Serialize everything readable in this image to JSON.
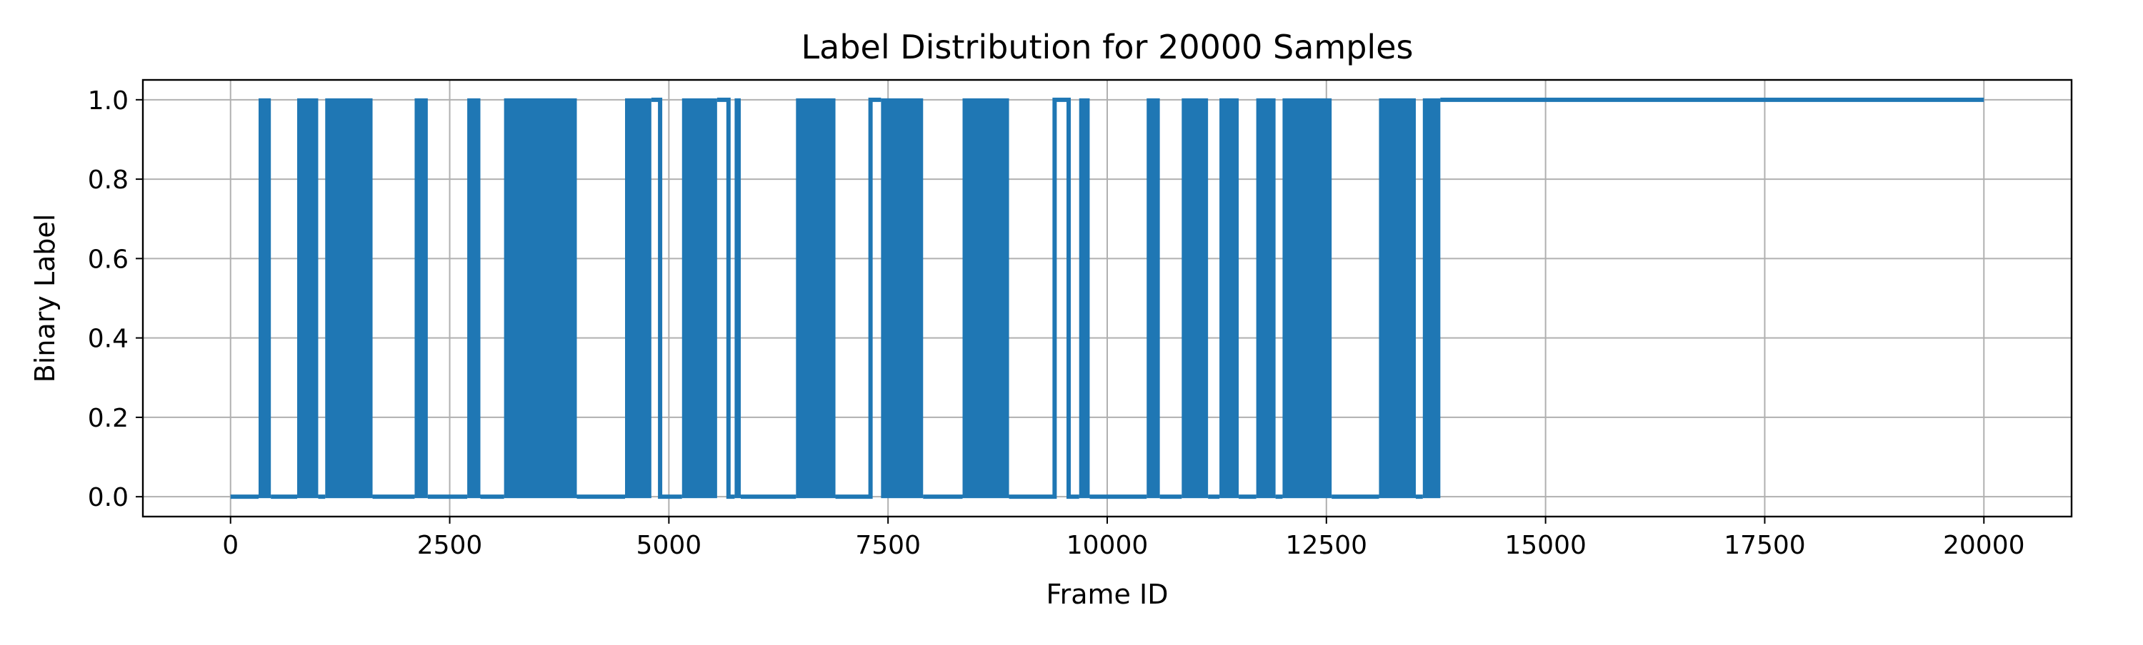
{
  "chart_data": {
    "type": "line",
    "title": "Label Distribution for 20000 Samples",
    "xlabel": "Frame ID",
    "ylabel": "Binary Label",
    "xlim": [
      -1000,
      21000
    ],
    "ylim": [
      -0.05,
      1.05
    ],
    "x_ticks": [
      0,
      2500,
      5000,
      7500,
      10000,
      12500,
      15000,
      17500,
      20000
    ],
    "x_tick_labels": [
      "0",
      "2500",
      "5000",
      "7500",
      "10000",
      "12500",
      "15000",
      "17500",
      "20000"
    ],
    "y_ticks": [
      0.0,
      0.2,
      0.4,
      0.6,
      0.8,
      1.0
    ],
    "y_tick_labels": [
      "0.0",
      "0.2",
      "0.4",
      "0.6",
      "0.8",
      "1.0"
    ],
    "grid": true,
    "line_color": "#1f77b4",
    "series": [
      {
        "segments": [
          {
            "start": 0,
            "end": 320,
            "label": 0
          },
          {
            "start": 320,
            "end": 460,
            "label": 1,
            "dense": true
          },
          {
            "start": 460,
            "end": 760,
            "label": 0
          },
          {
            "start": 760,
            "end": 1000,
            "label": 1,
            "dense": true
          },
          {
            "start": 1000,
            "end": 1080,
            "label": 0
          },
          {
            "start": 1080,
            "end": 1620,
            "label": 1,
            "dense": true
          },
          {
            "start": 1620,
            "end": 2100,
            "label": 0
          },
          {
            "start": 2100,
            "end": 2250,
            "label": 1,
            "dense": true
          },
          {
            "start": 2250,
            "end": 2700,
            "label": 0
          },
          {
            "start": 2700,
            "end": 2850,
            "label": 1,
            "dense": true
          },
          {
            "start": 2850,
            "end": 3120,
            "label": 0
          },
          {
            "start": 3120,
            "end": 3620,
            "label": 1,
            "dense": true
          },
          {
            "start": 3620,
            "end": 3950,
            "label": 1,
            "dense": true
          },
          {
            "start": 3950,
            "end": 4500,
            "label": 0
          },
          {
            "start": 4500,
            "end": 4800,
            "label": 1,
            "dense": true
          },
          {
            "start": 4800,
            "end": 4900,
            "label": 1
          },
          {
            "start": 4900,
            "end": 5150,
            "label": 0
          },
          {
            "start": 5150,
            "end": 5550,
            "label": 1,
            "dense": true
          },
          {
            "start": 5550,
            "end": 5680,
            "label": 1
          },
          {
            "start": 5680,
            "end": 5750,
            "label": 0
          },
          {
            "start": 5750,
            "end": 5820,
            "label": 1,
            "dense": true
          },
          {
            "start": 5820,
            "end": 6450,
            "label": 0
          },
          {
            "start": 6450,
            "end": 6900,
            "label": 1,
            "dense": true
          },
          {
            "start": 6900,
            "end": 7300,
            "label": 0
          },
          {
            "start": 7300,
            "end": 7420,
            "label": 1
          },
          {
            "start": 7420,
            "end": 7900,
            "label": 1,
            "dense": true
          },
          {
            "start": 7900,
            "end": 8350,
            "label": 0
          },
          {
            "start": 8350,
            "end": 8880,
            "label": 1,
            "dense": true
          },
          {
            "start": 8880,
            "end": 9400,
            "label": 0
          },
          {
            "start": 9400,
            "end": 9560,
            "label": 1
          },
          {
            "start": 9560,
            "end": 9680,
            "label": 0
          },
          {
            "start": 9680,
            "end": 9800,
            "label": 1,
            "dense": true
          },
          {
            "start": 9800,
            "end": 10450,
            "label": 0
          },
          {
            "start": 10450,
            "end": 10600,
            "label": 1,
            "dense": true
          },
          {
            "start": 10600,
            "end": 10850,
            "label": 0
          },
          {
            "start": 10850,
            "end": 11150,
            "label": 1,
            "dense": true
          },
          {
            "start": 11150,
            "end": 11280,
            "label": 0
          },
          {
            "start": 11280,
            "end": 11500,
            "label": 1,
            "dense": true
          },
          {
            "start": 11500,
            "end": 11700,
            "label": 0
          },
          {
            "start": 11700,
            "end": 11920,
            "label": 1,
            "dense": true
          },
          {
            "start": 11920,
            "end": 12000,
            "label": 0
          },
          {
            "start": 12000,
            "end": 12560,
            "label": 1,
            "dense": true
          },
          {
            "start": 12560,
            "end": 13100,
            "label": 0
          },
          {
            "start": 13100,
            "end": 13520,
            "label": 1,
            "dense": true
          },
          {
            "start": 13520,
            "end": 13600,
            "label": 0
          },
          {
            "start": 13600,
            "end": 13800,
            "label": 1,
            "dense": true
          },
          {
            "start": 13800,
            "end": 20000,
            "label": 1
          }
        ]
      }
    ]
  }
}
